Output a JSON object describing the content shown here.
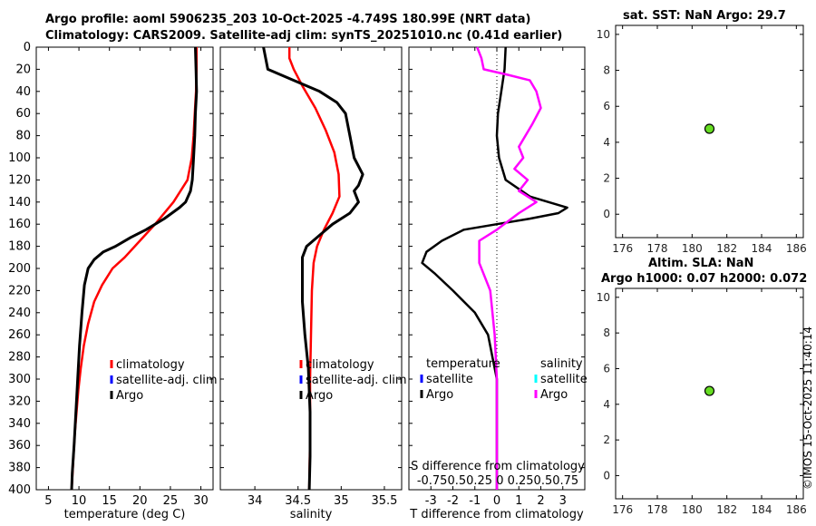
{
  "titles": {
    "line1": "Argo profile: aoml 5906235_203 10-Oct-2025 -4.749S 180.99E (NRT data)",
    "line2": "Climatology: CARS2009. Satellite-adj clim: synTS_20251010.nc (0.41d earlier)",
    "sst": "sat. SST: NaN Argo: 29.7",
    "sla1": "Altim. SLA: NaN",
    "sla2": "Argo h1000: 0.07 h2000: 0.072",
    "watermark": "©IMOS 15-Oct-2025 11:40:14"
  },
  "colors": {
    "clim": "#ff0000",
    "satellite": "#0000ff",
    "argo": "#000000",
    "argo_s": "#ff00ff",
    "sat_s": "#00ffff",
    "marker": "#66dd22"
  },
  "chart_data": [
    {
      "id": "temperature",
      "type": "line",
      "xlabel": "temperature (deg C)",
      "ylabel": "",
      "xlim": [
        3,
        32
      ],
      "ylim": [
        400,
        0
      ],
      "xticks": [
        5,
        10,
        15,
        20,
        25,
        30
      ],
      "yticks": [
        0,
        20,
        40,
        60,
        80,
        100,
        120,
        140,
        160,
        180,
        200,
        220,
        240,
        260,
        280,
        300,
        320,
        340,
        360,
        380,
        400
      ],
      "legend": [
        "climatology",
        "satellite-adj. clim",
        "Argo"
      ],
      "series": [
        {
          "name": "climatology",
          "color": "#ff0000",
          "points": [
            [
              29.3,
              0
            ],
            [
              29.3,
              20
            ],
            [
              29.2,
              40
            ],
            [
              29.0,
              60
            ],
            [
              28.8,
              80
            ],
            [
              28.5,
              100
            ],
            [
              27.8,
              120
            ],
            [
              25.5,
              140
            ],
            [
              22.5,
              160
            ],
            [
              20.0,
              175
            ],
            [
              17.5,
              190
            ],
            [
              15.5,
              200
            ],
            [
              13.8,
              215
            ],
            [
              12.5,
              230
            ],
            [
              11.5,
              250
            ],
            [
              10.8,
              270
            ],
            [
              10.3,
              290
            ],
            [
              9.9,
              310
            ],
            [
              9.6,
              330
            ],
            [
              9.3,
              350
            ],
            [
              9.1,
              370
            ],
            [
              8.9,
              390
            ],
            [
              8.8,
              400
            ]
          ]
        },
        {
          "name": "Argo",
          "color": "#000000",
          "points": [
            [
              29.1,
              0
            ],
            [
              29.2,
              20
            ],
            [
              29.3,
              40
            ],
            [
              29.1,
              60
            ],
            [
              29.0,
              80
            ],
            [
              28.8,
              100
            ],
            [
              28.6,
              120
            ],
            [
              28.3,
              130
            ],
            [
              27.5,
              140
            ],
            [
              26.5,
              145
            ],
            [
              24.0,
              155
            ],
            [
              21.0,
              165
            ],
            [
              18.5,
              172
            ],
            [
              16.0,
              180
            ],
            [
              14.0,
              185
            ],
            [
              12.5,
              192
            ],
            [
              11.5,
              200
            ],
            [
              10.9,
              215
            ],
            [
              10.5,
              240
            ],
            [
              10.1,
              270
            ],
            [
              9.8,
              300
            ],
            [
              9.5,
              330
            ],
            [
              9.2,
              360
            ],
            [
              8.9,
              385
            ],
            [
              8.8,
              400
            ]
          ]
        }
      ]
    },
    {
      "id": "salinity",
      "type": "line",
      "xlabel": "salinity",
      "xlim": [
        33.6,
        35.7
      ],
      "ylim": [
        400,
        0
      ],
      "xticks": [
        34,
        34.5,
        35,
        35.5
      ],
      "legend": [
        "climatology",
        "satellite-adj. clim",
        "Argo"
      ],
      "series": [
        {
          "name": "climatology",
          "color": "#ff0000",
          "points": [
            [
              34.4,
              0
            ],
            [
              34.4,
              10
            ],
            [
              34.45,
              20
            ],
            [
              34.55,
              35
            ],
            [
              34.7,
              55
            ],
            [
              34.82,
              75
            ],
            [
              34.92,
              95
            ],
            [
              34.97,
              115
            ],
            [
              34.98,
              135
            ],
            [
              34.9,
              150
            ],
            [
              34.8,
              165
            ],
            [
              34.72,
              180
            ],
            [
              34.68,
              195
            ],
            [
              34.66,
              220
            ],
            [
              34.65,
              260
            ],
            [
              34.64,
              300
            ],
            [
              34.64,
              350
            ],
            [
              34.63,
              400
            ]
          ]
        },
        {
          "name": "Argo",
          "color": "#000000",
          "points": [
            [
              34.1,
              0
            ],
            [
              34.15,
              20
            ],
            [
              34.45,
              30
            ],
            [
              34.75,
              40
            ],
            [
              34.95,
              50
            ],
            [
              35.05,
              60
            ],
            [
              35.1,
              80
            ],
            [
              35.15,
              100
            ],
            [
              35.25,
              115
            ],
            [
              35.2,
              125
            ],
            [
              35.15,
              130
            ],
            [
              35.2,
              140
            ],
            [
              35.1,
              150
            ],
            [
              34.9,
              160
            ],
            [
              34.75,
              170
            ],
            [
              34.6,
              180
            ],
            [
              34.55,
              190
            ],
            [
              34.55,
              230
            ],
            [
              34.58,
              260
            ],
            [
              34.62,
              290
            ],
            [
              34.64,
              330
            ],
            [
              34.64,
              370
            ],
            [
              34.63,
              400
            ]
          ]
        }
      ]
    },
    {
      "id": "difference",
      "type": "line",
      "xlabel": "T difference from climatology",
      "xlabel_top": "S difference from climatology",
      "s_tick_text": "-0.750.50.25  0  0.250.50.75",
      "xlim": [
        -4,
        4
      ],
      "ylim": [
        400,
        0
      ],
      "xticks": [
        -3,
        -2,
        -1,
        0,
        1,
        2,
        3
      ],
      "legend_left_title": "temperature",
      "legend_right_title": "salinity",
      "legend_left": [
        "satellite",
        "Argo"
      ],
      "legend_right": [
        "satellite",
        "Argo"
      ],
      "series": [
        {
          "name": "Argo T",
          "color": "#000000",
          "points": [
            [
              0.4,
              0
            ],
            [
              0.35,
              20
            ],
            [
              0.2,
              40
            ],
            [
              0.05,
              60
            ],
            [
              0.0,
              80
            ],
            [
              0.1,
              100
            ],
            [
              0.4,
              120
            ],
            [
              1.5,
              135
            ],
            [
              3.2,
              145
            ],
            [
              2.8,
              150
            ],
            [
              1.5,
              155
            ],
            [
              0.0,
              160
            ],
            [
              -1.5,
              165
            ],
            [
              -2.5,
              175
            ],
            [
              -3.2,
              185
            ],
            [
              -3.4,
              195
            ],
            [
              -2.8,
              205
            ],
            [
              -2.0,
              220
            ],
            [
              -1.0,
              240
            ],
            [
              -0.4,
              260
            ],
            [
              -0.2,
              280
            ],
            [
              0.0,
              300
            ],
            [
              0.0,
              350
            ],
            [
              0.0,
              400
            ]
          ]
        },
        {
          "name": "Argo S",
          "color": "#ff00ff",
          "points": [
            [
              -0.9,
              0
            ],
            [
              -0.7,
              10
            ],
            [
              -0.6,
              20
            ],
            [
              0.5,
              25
            ],
            [
              1.5,
              30
            ],
            [
              1.8,
              40
            ],
            [
              2.0,
              55
            ],
            [
              1.6,
              70
            ],
            [
              1.0,
              90
            ],
            [
              1.2,
              100
            ],
            [
              0.8,
              110
            ],
            [
              1.4,
              120
            ],
            [
              1.0,
              130
            ],
            [
              1.8,
              140
            ],
            [
              1.0,
              150
            ],
            [
              0.0,
              165
            ],
            [
              -0.8,
              175
            ],
            [
              -0.8,
              195
            ],
            [
              -0.3,
              220
            ],
            [
              -0.1,
              260
            ],
            [
              0.0,
              300
            ],
            [
              0.0,
              400
            ]
          ]
        }
      ]
    },
    {
      "id": "sst",
      "type": "scatter",
      "title": "sat. SST: NaN Argo: 29.7",
      "xlim": [
        175.6,
        186.4
      ],
      "ylim": [
        -1.3,
        10.5
      ],
      "xticks": [
        176,
        178,
        180,
        182,
        184,
        186
      ],
      "yticks": [
        0,
        2,
        4,
        6,
        8,
        10
      ],
      "points": [
        [
          181,
          4.75
        ]
      ]
    },
    {
      "id": "sla",
      "type": "scatter",
      "title": "Altim. SLA: NaN",
      "subtitle": "Argo h1000: 0.07 h2000: 0.072",
      "xlim": [
        175.6,
        186.4
      ],
      "ylim": [
        -1.3,
        10.5
      ],
      "xticks": [
        176,
        178,
        180,
        182,
        184,
        186
      ],
      "yticks": [
        0,
        2,
        4,
        6,
        8,
        10
      ],
      "points": [
        [
          181,
          4.75
        ]
      ]
    }
  ]
}
